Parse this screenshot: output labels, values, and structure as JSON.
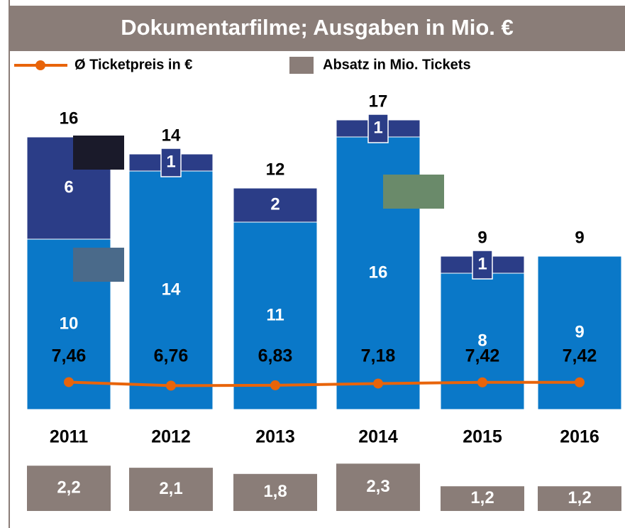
{
  "chart_data": {
    "type": "stacked-bar-line",
    "title": "Dokumentarfilme; Ausgaben in Mio. €",
    "categories": [
      "2011",
      "2012",
      "2013",
      "2014",
      "2015",
      "2016"
    ],
    "series": [
      {
        "color": "#0a78c8",
        "values": [
          10,
          14,
          11,
          16,
          8,
          9
        ]
      },
      {
        "color": "#2b3d87",
        "values": [
          6,
          1,
          2,
          1,
          1,
          null
        ]
      }
    ],
    "totals": [
      16,
      14,
      12,
      17,
      9,
      9
    ],
    "line": {
      "name": "Ø Ticketpreis in €",
      "color": "#e8640a",
      "values": [
        7.46,
        6.76,
        6.83,
        7.18,
        7.42,
        7.42
      ],
      "value_labels": [
        "7,46",
        "6,76",
        "6,83",
        "7,18",
        "7,42",
        "7,42"
      ]
    },
    "sales": {
      "name": "Absatz in Mio. Tickets",
      "color": "#8a7d78",
      "values": [
        2.2,
        2.1,
        1.8,
        2.3,
        1.2,
        1.2
      ],
      "value_labels": [
        "2,2",
        "2,1",
        "1,8",
        "2,3",
        "1,2",
        "1,2"
      ]
    }
  }
}
